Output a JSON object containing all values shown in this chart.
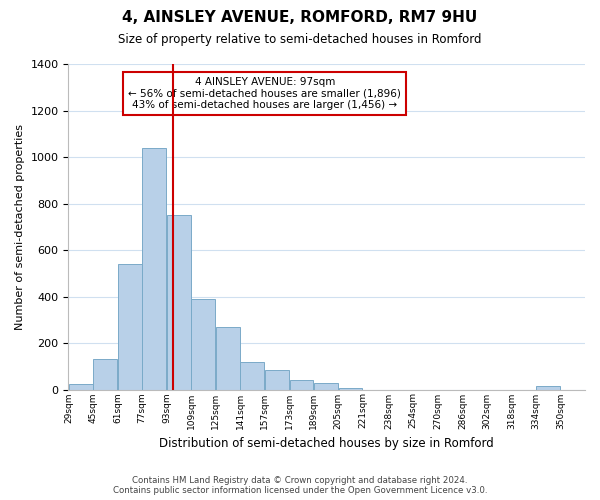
{
  "title": "4, AINSLEY AVENUE, ROMFORD, RM7 9HU",
  "subtitle": "Size of property relative to semi-detached houses in Romford",
  "xlabel": "Distribution of semi-detached houses by size in Romford",
  "ylabel": "Number of semi-detached properties",
  "bin_labels": [
    "29sqm",
    "45sqm",
    "61sqm",
    "77sqm",
    "93sqm",
    "109sqm",
    "125sqm",
    "141sqm",
    "157sqm",
    "173sqm",
    "189sqm",
    "205sqm",
    "221sqm",
    "238sqm",
    "254sqm",
    "270sqm",
    "286sqm",
    "302sqm",
    "318sqm",
    "334sqm",
    "350sqm"
  ],
  "bin_starts": [
    29,
    45,
    61,
    77,
    93,
    109,
    125,
    141,
    157,
    173,
    189,
    205,
    221,
    238,
    254,
    270,
    286,
    302,
    318,
    334
  ],
  "bar_heights": [
    25,
    130,
    540,
    1040,
    750,
    390,
    270,
    120,
    82,
    42,
    28,
    5,
    0,
    0,
    0,
    0,
    0,
    0,
    0,
    15
  ],
  "bin_width": 16,
  "last_tick": 350,
  "bar_color": "#b8d0e8",
  "bar_edge_color": "#7aaac8",
  "property_size": 97,
  "property_line_color": "#cc0000",
  "annotation_title": "4 AINSLEY AVENUE: 97sqm",
  "annotation_line1": "← 56% of semi-detached houses are smaller (1,896)",
  "annotation_line2": "43% of semi-detached houses are larger (1,456) →",
  "annotation_box_color": "#ffffff",
  "annotation_box_edge_color": "#cc0000",
  "ylim": [
    0,
    1400
  ],
  "yticks": [
    0,
    200,
    400,
    600,
    800,
    1000,
    1200,
    1400
  ],
  "footer_line1": "Contains HM Land Registry data © Crown copyright and database right 2024.",
  "footer_line2": "Contains public sector information licensed under the Open Government Licence v3.0.",
  "background_color": "#ffffff",
  "grid_color": "#d0e0f0"
}
